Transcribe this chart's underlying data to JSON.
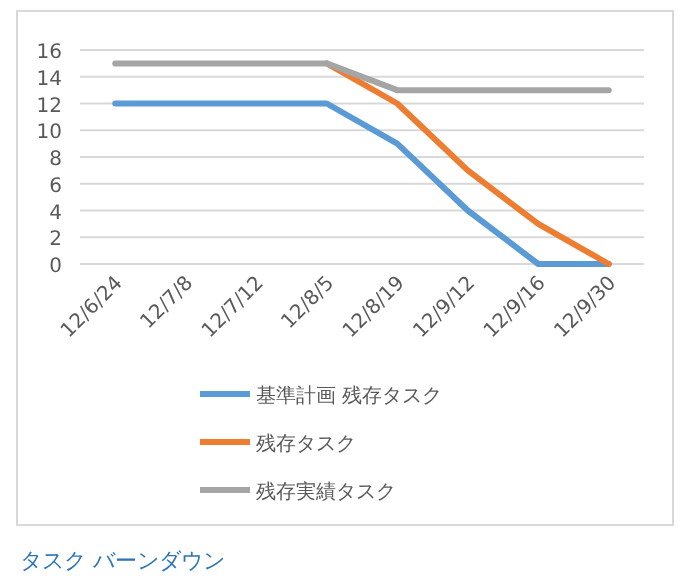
{
  "chart_data": {
    "type": "line",
    "title": "タスク バーンダウン",
    "categories": [
      "12/6/24",
      "12/7/8",
      "12/7/12",
      "12/8/5",
      "12/8/19",
      "12/9/12",
      "12/9/16",
      "12/9/30"
    ],
    "series": [
      {
        "name": "基準計画 残存タスク",
        "color": "#5b9bd5",
        "values": [
          12,
          12,
          12,
          12,
          9,
          4,
          0,
          0
        ]
      },
      {
        "name": "残存タスク",
        "color": "#ed7d31",
        "values": [
          null,
          null,
          null,
          15,
          12,
          7,
          3,
          0
        ]
      },
      {
        "name": "残存実績タスク",
        "color": "#a5a5a5",
        "values": [
          15,
          15,
          15,
          15,
          13,
          13,
          13,
          13
        ]
      }
    ],
    "ylim": [
      0,
      16
    ],
    "yticks": [
      0,
      2,
      4,
      6,
      8,
      10,
      12,
      14,
      16
    ],
    "grid": "y",
    "legend": "bottom"
  }
}
